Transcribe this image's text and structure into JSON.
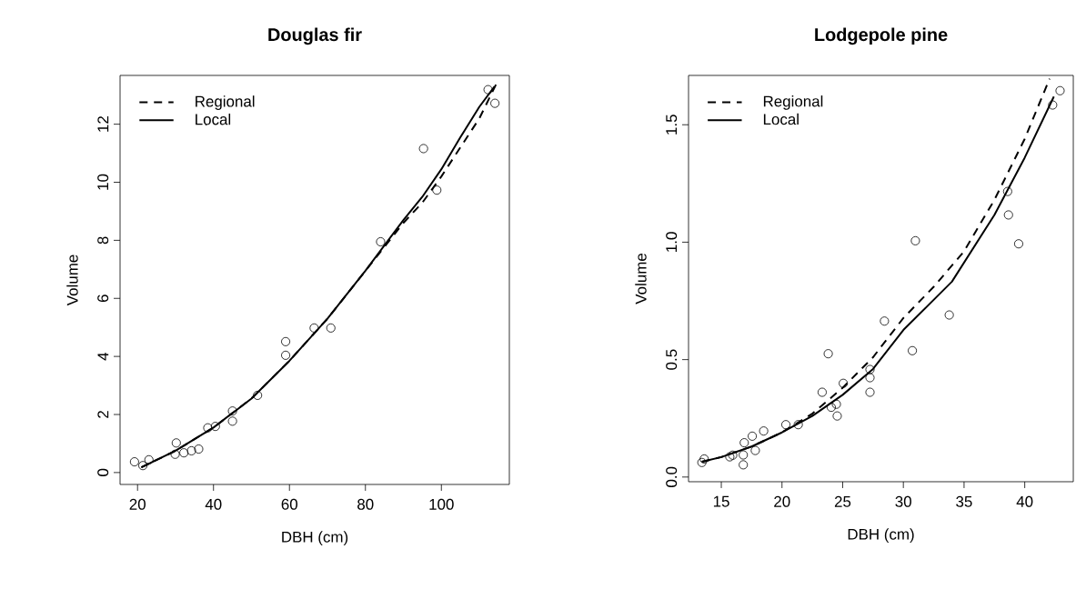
{
  "chart_data": [
    {
      "type": "scatter",
      "title": "Douglas fir",
      "xlabel": "DBH (cm)",
      "ylabel": "Volume",
      "legend": "top left",
      "grid": false,
      "xlim": [
        15.4,
        117.9
      ],
      "ylim": [
        -0.41,
        13.68
      ],
      "xticks": [
        20,
        40,
        60,
        80,
        100
      ],
      "yticks": [
        0,
        2,
        4,
        6,
        8,
        10,
        12
      ],
      "series": [
        {
          "marker": "circle",
          "color": "#000000",
          "x": [
            19.2,
            21.4,
            23.0,
            30.2,
            29.9,
            32.2,
            34.2,
            36.1,
            38.5,
            40.5,
            45.0,
            45.0,
            51.6,
            59.0,
            59.0,
            66.5,
            70.9,
            84.0,
            95.3,
            98.8,
            112.3,
            114.1
          ],
          "values": [
            0.37,
            0.24,
            0.44,
            1.02,
            0.63,
            0.68,
            0.75,
            0.81,
            1.54,
            1.59,
            2.12,
            1.77,
            2.66,
            4.51,
            4.04,
            4.98,
            4.98,
            7.95,
            11.16,
            9.73,
            13.19,
            12.72
          ]
        },
        {
          "name": "Regional",
          "type": "line",
          "line_style": "dashed",
          "marker": "none",
          "color": "#000000",
          "x": [
            21,
            30,
            40,
            50,
            60,
            70,
            80,
            90,
            95,
            100,
            105,
            110,
            114.5
          ],
          "values": [
            0.18,
            0.75,
            1.55,
            2.55,
            3.85,
            5.3,
            6.95,
            8.6,
            9.3,
            10.2,
            11.2,
            12.2,
            13.4
          ]
        },
        {
          "name": "Local",
          "type": "line",
          "line_style": "solid",
          "marker": "none",
          "color": "#000000",
          "x": [
            21,
            30,
            40,
            50,
            60,
            70,
            80,
            90,
            95,
            100,
            105,
            110,
            114
          ],
          "values": [
            0.18,
            0.75,
            1.55,
            2.55,
            3.85,
            5.3,
            6.95,
            8.7,
            9.5,
            10.45,
            11.55,
            12.6,
            13.3
          ]
        }
      ]
    },
    {
      "type": "scatter",
      "title": "Lodgepole pine",
      "xlabel": "DBH (cm)",
      "ylabel": "Volume",
      "legend": "top left",
      "grid": false,
      "xlim": [
        12.3,
        44.0
      ],
      "ylim": [
        -0.02,
        1.71
      ],
      "xticks": [
        15,
        20,
        25,
        30,
        35,
        40
      ],
      "yticks": [
        {
          "value": 0,
          "label": "0.0"
        },
        {
          "value": 0.5,
          "label": "0.5"
        },
        {
          "value": 1,
          "label": "1.0"
        },
        {
          "value": 1.5,
          "label": "1.5"
        }
      ],
      "series": [
        {
          "marker": "circle",
          "color": "#000000",
          "x": [
            13.4,
            13.59,
            15.7,
            15.94,
            16.81,
            16.81,
            16.89,
            17.55,
            17.8,
            18.49,
            20.32,
            21.34,
            23.31,
            23.81,
            24.06,
            24.48,
            24.55,
            25.05,
            27.25,
            27.25,
            27.25,
            28.44,
            30.74,
            30.99,
            33.78,
            38.59,
            38.66,
            39.5,
            42.3,
            42.91
          ],
          "values": [
            0.062,
            0.077,
            0.086,
            0.093,
            0.052,
            0.094,
            0.146,
            0.174,
            0.113,
            0.196,
            0.223,
            0.223,
            0.361,
            0.525,
            0.297,
            0.31,
            0.26,
            0.399,
            0.458,
            0.423,
            0.361,
            0.664,
            0.538,
            1.006,
            0.69,
            1.216,
            1.116,
            0.993,
            1.584,
            1.645
          ]
        },
        {
          "name": "Regional",
          "type": "line",
          "line_style": "dashed",
          "marker": "none",
          "color": "#000000",
          "x": [
            13.4,
            15,
            17.5,
            20,
            22.5,
            25,
            27.5,
            30,
            32.5,
            35,
            37.5,
            40,
            42.05
          ],
          "values": [
            0.065,
            0.085,
            0.13,
            0.19,
            0.27,
            0.38,
            0.51,
            0.677,
            0.81,
            0.961,
            1.18,
            1.44,
            1.696
          ]
        },
        {
          "name": "Local",
          "type": "line",
          "line_style": "solid",
          "marker": "none",
          "color": "#000000",
          "x": [
            13.4,
            15,
            17.5,
            20,
            22.5,
            25,
            27.5,
            30,
            34,
            37.5,
            40,
            42.4
          ],
          "values": [
            0.065,
            0.085,
            0.13,
            0.19,
            0.26,
            0.35,
            0.46,
            0.626,
            0.832,
            1.116,
            1.36,
            1.62
          ]
        }
      ]
    }
  ]
}
